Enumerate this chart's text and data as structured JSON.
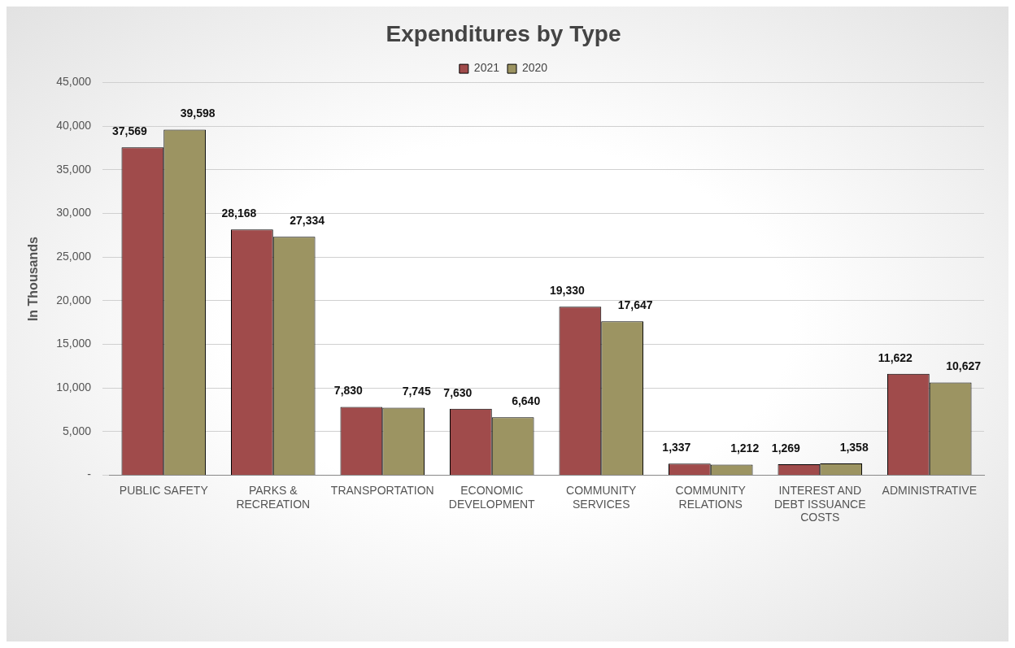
{
  "chart_data": {
    "type": "bar",
    "title": "Expenditures by Type",
    "ylabel": "In Thousands",
    "categories": [
      "PUBLIC SAFETY",
      "PARKS & RECREATION",
      "TRANSPORTATION",
      "ECONOMIC DEVELOPMENT",
      "COMMUNITY SERVICES",
      "COMMUNITY RELATIONS",
      "INTEREST AND DEBT ISSUANCE COSTS",
      "ADMINISTRATIVE"
    ],
    "series": [
      {
        "name": "2021",
        "color": "#a04b4b",
        "values": [
          37569,
          28168,
          7830,
          7630,
          19330,
          1337,
          1269,
          11622
        ],
        "value_labels": [
          "37,569",
          "28,168",
          "7,830",
          "7,630",
          "19,330",
          "1,337",
          "1,269",
          "11,622"
        ]
      },
      {
        "name": "2020",
        "color": "#9c9462",
        "values": [
          39598,
          27334,
          7745,
          6640,
          17647,
          1212,
          1358,
          10627
        ],
        "value_labels": [
          "39,598",
          "27,334",
          "7,745",
          "6,640",
          "17,647",
          "1,212",
          "1,358",
          "10,627"
        ]
      }
    ],
    "ylim": [
      0,
      45000
    ],
    "yticks": [
      {
        "value": 0,
        "label": "-"
      },
      {
        "value": 5000,
        "label": "5,000"
      },
      {
        "value": 10000,
        "label": "10,000"
      },
      {
        "value": 15000,
        "label": "15,000"
      },
      {
        "value": 20000,
        "label": "20,000"
      },
      {
        "value": 25000,
        "label": "25,000"
      },
      {
        "value": 30000,
        "label": "30,000"
      },
      {
        "value": 35000,
        "label": "35,000"
      },
      {
        "value": 40000,
        "label": "40,000"
      },
      {
        "value": 45000,
        "label": "45,000"
      }
    ],
    "grid": "y",
    "legend": "top"
  }
}
